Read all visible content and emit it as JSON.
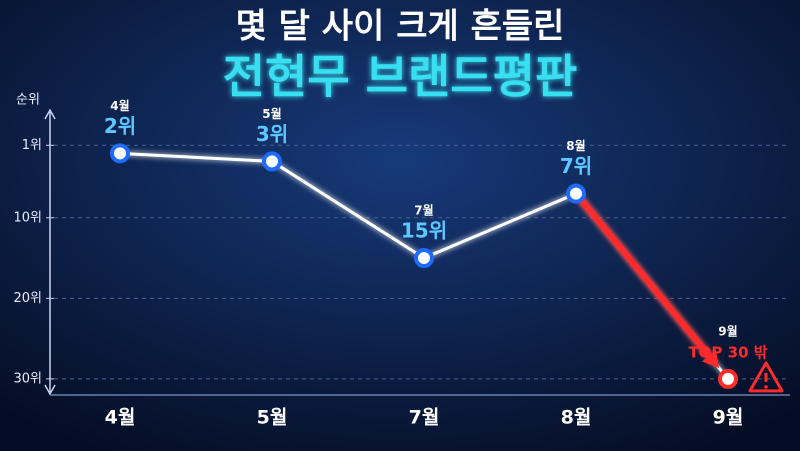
{
  "chart_data": {
    "type": "line",
    "title": "몇 달 사이 크게 흔들린",
    "subtitle": "전현무 브랜드평판",
    "y_label": "순위",
    "categories": [
      "4월",
      "5월",
      "7월",
      "8월",
      "9월"
    ],
    "values": [
      2,
      3,
      15,
      7,
      30
    ],
    "value_labels": [
      "2위",
      "3위",
      "15위",
      "7위",
      "TOP 30 밖"
    ],
    "color": "#ffffff",
    "highlight_color": "#ff2a2a",
    "ylim": [
      -4,
      32
    ],
    "y_inverted": true,
    "yticks": [
      {
        "value": 1,
        "label": "1위"
      },
      {
        "value": 10,
        "label": "10위"
      },
      {
        "value": 20,
        "label": "20위"
      },
      {
        "value": 30,
        "label": "30위"
      }
    ],
    "grid": true
  }
}
